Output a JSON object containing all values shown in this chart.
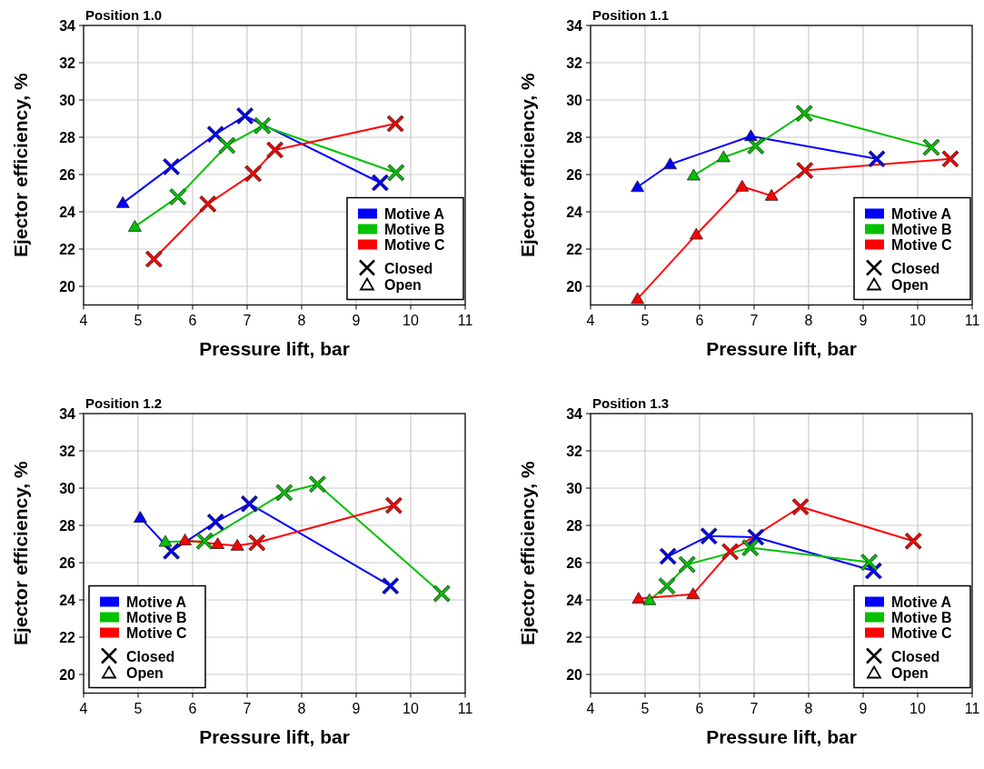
{
  "chart_data": [
    {
      "type": "line",
      "title": "Position 1.0",
      "annotations": [
        "Closed",
        "Open"
      ],
      "xlabel": "Pressure lift, bar",
      "ylabel": "Ejector efficiency, %",
      "xlim": [
        4,
        11
      ],
      "xticks": [
        4,
        5,
        6,
        7,
        8,
        9,
        10,
        11
      ],
      "ylim": [
        19,
        34
      ],
      "yticks": [
        20,
        22,
        24,
        26,
        28,
        30,
        32,
        34
      ],
      "grid": true,
      "legend": "bottom right",
      "series": [
        {
          "name": "Motive A",
          "color": "#0000ff",
          "marker": "none",
          "x": [
            4.72,
            5.61,
            6.42,
            6.96,
            9.44
          ],
          "values": [
            24.47,
            26.42,
            28.16,
            29.15,
            25.56
          ]
        },
        {
          "name": "Motive B",
          "color": "#00c000",
          "marker": "none",
          "x": [
            4.94,
            5.73,
            6.63,
            7.28,
            9.73
          ],
          "values": [
            23.2,
            24.8,
            27.56,
            28.62,
            26.1
          ]
        },
        {
          "name": "Motive C",
          "color": "#ff0000",
          "marker": "none",
          "x": [
            5.29,
            6.28,
            7.11,
            7.51,
            9.72
          ],
          "values": [
            21.46,
            24.42,
            26.05,
            27.32,
            28.73
          ]
        },
        {
          "type": "scatter",
          "marker": "cross",
          "x": [
            5.61,
            6.42,
            6.96,
            9.44,
            5.73,
            6.63,
            7.28,
            9.73,
            5.29,
            6.28,
            7.11,
            7.51,
            9.72
          ],
          "values": [
            26.42,
            28.16,
            29.15,
            25.56,
            24.8,
            27.56,
            28.62,
            26.1,
            21.46,
            24.42,
            26.05,
            27.32,
            28.73
          ],
          "colors": [
            "#0000ff",
            "#0000ff",
            "#0000ff",
            "#0000ff",
            "#00c000",
            "#00c000",
            "#00c000",
            "#00c000",
            "#ff0000",
            "#ff0000",
            "#ff0000",
            "#ff0000",
            "#ff0000"
          ]
        },
        {
          "type": "scatter",
          "marker": "triangle",
          "x": [
            4.72,
            4.94
          ],
          "values": [
            24.47,
            23.2
          ],
          "colors": [
            "#0000ff",
            "#00c000"
          ]
        }
      ]
    },
    {
      "type": "line",
      "title": "Position 1.1",
      "annotations": [
        "Closed",
        "Open"
      ],
      "xlabel": "Pressure lift, bar",
      "ylabel": "Ejector efficiency, %",
      "xlim": [
        4,
        11
      ],
      "xticks": [
        4,
        5,
        6,
        7,
        8,
        9,
        10,
        11
      ],
      "ylim": [
        19,
        34
      ],
      "yticks": [
        20,
        22,
        24,
        26,
        28,
        30,
        32,
        34
      ],
      "grid": true,
      "legend": "bottom right",
      "series": [
        {
          "name": "Motive A",
          "color": "#0000ff",
          "marker": "none",
          "x": [
            4.86,
            5.46,
            6.94,
            9.25
          ],
          "values": [
            25.33,
            26.55,
            28.06,
            26.84
          ]
        },
        {
          "name": "Motive B",
          "color": "#00c000",
          "marker": "none",
          "x": [
            5.89,
            6.44,
            7.03,
            7.92,
            10.25
          ],
          "values": [
            25.95,
            26.93,
            27.54,
            29.28,
            27.46
          ]
        },
        {
          "name": "Motive C",
          "color": "#ff0000",
          "marker": "none",
          "x": [
            4.86,
            5.94,
            6.78,
            7.32,
            7.93,
            10.6
          ],
          "values": [
            19.32,
            22.78,
            25.35,
            24.86,
            26.22,
            26.84
          ]
        },
        {
          "type": "scatter",
          "marker": "cross",
          "x": [
            9.25,
            7.03,
            7.92,
            10.25,
            7.93,
            10.6
          ],
          "values": [
            26.84,
            27.54,
            29.28,
            27.46,
            26.22,
            26.84
          ],
          "colors": [
            "#0000ff",
            "#00c000",
            "#00c000",
            "#00c000",
            "#ff0000",
            "#ff0000"
          ]
        },
        {
          "type": "scatter",
          "marker": "triangle",
          "x": [
            4.86,
            5.46,
            6.94,
            5.89,
            6.44,
            4.86,
            5.94,
            6.78,
            7.32
          ],
          "values": [
            25.33,
            26.55,
            28.06,
            25.95,
            26.93,
            19.32,
            22.78,
            25.35,
            24.86
          ],
          "colors": [
            "#0000ff",
            "#0000ff",
            "#0000ff",
            "#00c000",
            "#00c000",
            "#ff0000",
            "#ff0000",
            "#ff0000",
            "#ff0000"
          ]
        }
      ]
    },
    {
      "type": "line",
      "title": "Position 1.2",
      "annotations": [
        "Closed",
        "Open"
      ],
      "xlabel": "Pressure lift, bar",
      "ylabel": "Ejector efficiency, %",
      "xlim": [
        4,
        11
      ],
      "xticks": [
        4,
        5,
        6,
        7,
        8,
        9,
        10,
        11
      ],
      "ylim": [
        19,
        34
      ],
      "yticks": [
        20,
        22,
        24,
        26,
        28,
        30,
        32,
        34
      ],
      "grid": true,
      "legend": "bottom left",
      "series": [
        {
          "name": "Motive A",
          "color": "#0000ff",
          "marker": "none",
          "x": [
            5.04,
            5.61,
            6.42,
            7.04,
            9.63
          ],
          "values": [
            28.41,
            26.62,
            28.18,
            29.16,
            24.75
          ]
        },
        {
          "name": "Motive B",
          "color": "#00c000",
          "marker": "none",
          "x": [
            5.5,
            6.22,
            7.68,
            8.29,
            10.57
          ],
          "values": [
            27.12,
            27.16,
            29.76,
            30.21,
            24.34
          ]
        },
        {
          "name": "Motive C",
          "color": "#ff0000",
          "marker": "none",
          "x": [
            5.86,
            6.46,
            6.82,
            7.18,
            9.69
          ],
          "values": [
            27.2,
            27.0,
            26.91,
            27.07,
            29.07
          ]
        },
        {
          "type": "scatter",
          "marker": "cross",
          "x": [
            5.61,
            6.42,
            7.04,
            9.63,
            6.22,
            7.68,
            8.29,
            10.57,
            7.18,
            9.69
          ],
          "values": [
            26.62,
            28.18,
            29.16,
            24.75,
            27.16,
            29.76,
            30.21,
            24.34,
            27.07,
            29.07
          ],
          "colors": [
            "#0000ff",
            "#0000ff",
            "#0000ff",
            "#0000ff",
            "#00c000",
            "#00c000",
            "#00c000",
            "#00c000",
            "#ff0000",
            "#ff0000"
          ]
        },
        {
          "type": "scatter",
          "marker": "triangle",
          "x": [
            5.04,
            5.5,
            5.86,
            6.46,
            6.82
          ],
          "values": [
            28.41,
            27.12,
            27.2,
            27.0,
            26.91
          ],
          "colors": [
            "#0000ff",
            "#00c000",
            "#ff0000",
            "#ff0000",
            "#ff0000"
          ]
        }
      ]
    },
    {
      "type": "line",
      "title": "Position 1.3",
      "annotations": [
        "Closed",
        "Open"
      ],
      "xlabel": "Pressure lift, bar",
      "ylabel": "Ejector efficiency, %",
      "xlim": [
        4,
        11
      ],
      "xticks": [
        4,
        5,
        6,
        7,
        8,
        9,
        10,
        11
      ],
      "ylim": [
        19,
        34
      ],
      "yticks": [
        20,
        22,
        24,
        26,
        28,
        30,
        32,
        34
      ],
      "grid": true,
      "legend": "bottom right",
      "series": [
        {
          "name": "Motive A",
          "color": "#0000ff",
          "marker": "none",
          "x": [
            5.42,
            6.17,
            7.03,
            9.19
          ],
          "values": [
            26.34,
            27.43,
            27.37,
            25.56
          ]
        },
        {
          "name": "Motive B",
          "color": "#00c000",
          "marker": "none",
          "x": [
            5.08,
            5.4,
            5.77,
            6.93,
            9.11
          ],
          "values": [
            23.99,
            24.75,
            25.9,
            26.8,
            26.02
          ]
        },
        {
          "name": "Motive C",
          "color": "#ff0000",
          "marker": "none",
          "x": [
            4.88,
            5.88,
            6.56,
            7.85,
            9.92
          ],
          "values": [
            24.07,
            24.31,
            26.59,
            29.0,
            27.16
          ]
        },
        {
          "type": "scatter",
          "marker": "cross",
          "x": [
            5.42,
            6.17,
            7.03,
            9.19,
            5.4,
            5.77,
            6.93,
            9.11,
            6.56,
            7.85,
            9.92
          ],
          "values": [
            26.34,
            27.43,
            27.37,
            25.56,
            24.75,
            25.9,
            26.8,
            26.02,
            26.59,
            29.0,
            27.16
          ],
          "colors": [
            "#0000ff",
            "#0000ff",
            "#0000ff",
            "#0000ff",
            "#00c000",
            "#00c000",
            "#00c000",
            "#00c000",
            "#ff0000",
            "#ff0000",
            "#ff0000"
          ]
        },
        {
          "type": "scatter",
          "marker": "triangle",
          "x": [
            5.08,
            4.88,
            5.88
          ],
          "values": [
            23.99,
            24.07,
            24.31
          ],
          "colors": [
            "#00c000",
            "#ff0000",
            "#ff0000"
          ]
        }
      ]
    }
  ]
}
